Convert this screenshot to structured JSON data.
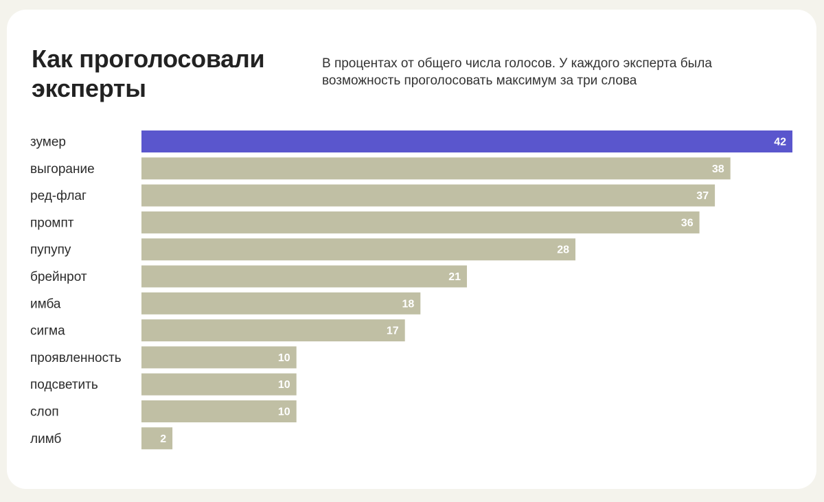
{
  "colors": {
    "page_bg": "#f4f3ec",
    "card_bg": "#ffffff",
    "highlight_bar": "#5a56cd",
    "bar": "#c0bfa4",
    "value_text": "#ffffff",
    "text": "#222222"
  },
  "chart_data": {
    "type": "bar",
    "orientation": "horizontal",
    "title": "Как проголосовали эксперты",
    "subtitle": "В процентах от общего числа голосов. У каждого эксперта была возможность проголосовать максимум за три слова",
    "xlabel": "",
    "ylabel": "",
    "xlim": [
      0,
      42
    ],
    "grid": false,
    "legend": "none",
    "highlight_index": 0,
    "categories": [
      "зумер",
      "выгорание",
      "ред-флаг",
      "промпт",
      "пупупу",
      "брейнрот",
      "имба",
      "сигма",
      "проявленность",
      "подсветить",
      "слоп",
      "лимб"
    ],
    "values": [
      42,
      38,
      37,
      36,
      28,
      21,
      18,
      17,
      10,
      10,
      10,
      2
    ]
  }
}
